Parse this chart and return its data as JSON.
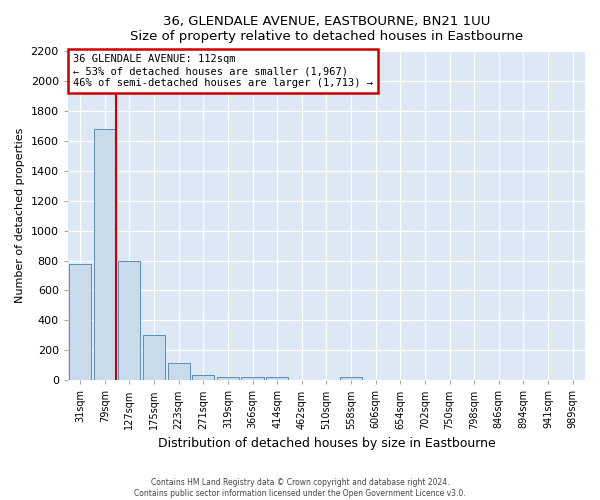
{
  "title": "36, GLENDALE AVENUE, EASTBOURNE, BN21 1UU",
  "subtitle": "Size of property relative to detached houses in Eastbourne",
  "xlabel": "Distribution of detached houses by size in Eastbourne",
  "ylabel": "Number of detached properties",
  "bar_labels": [
    "31sqm",
    "79sqm",
    "127sqm",
    "175sqm",
    "223sqm",
    "271sqm",
    "319sqm",
    "366sqm",
    "414sqm",
    "462sqm",
    "510sqm",
    "558sqm",
    "606sqm",
    "654sqm",
    "702sqm",
    "750sqm",
    "798sqm",
    "846sqm",
    "894sqm",
    "941sqm",
    "989sqm"
  ],
  "bar_values": [
    780,
    1680,
    800,
    300,
    115,
    35,
    25,
    25,
    20,
    0,
    0,
    20,
    0,
    0,
    0,
    0,
    0,
    0,
    0,
    0,
    0
  ],
  "bar_color": "#c9daea",
  "bar_edge_color": "#5b8db8",
  "reference_line_label": "36 GLENDALE AVENUE: 112sqm",
  "annotation_line1": "← 53% of detached houses are smaller (1,967)",
  "annotation_line2": "46% of semi-detached houses are larger (1,713) →",
  "annotation_box_color": "#ffffff",
  "annotation_box_edge_color": "#cc0000",
  "ref_line_color": "#cc0000",
  "ylim": [
    0,
    2200
  ],
  "yticks": [
    0,
    200,
    400,
    600,
    800,
    1000,
    1200,
    1400,
    1600,
    1800,
    2000,
    2200
  ],
  "footer_line1": "Contains HM Land Registry data © Crown copyright and database right 2024.",
  "footer_line2": "Contains public sector information licensed under the Open Government Licence v3.0.",
  "fig_bg_color": "#ffffff",
  "plot_bg_color": "#dce9f5"
}
